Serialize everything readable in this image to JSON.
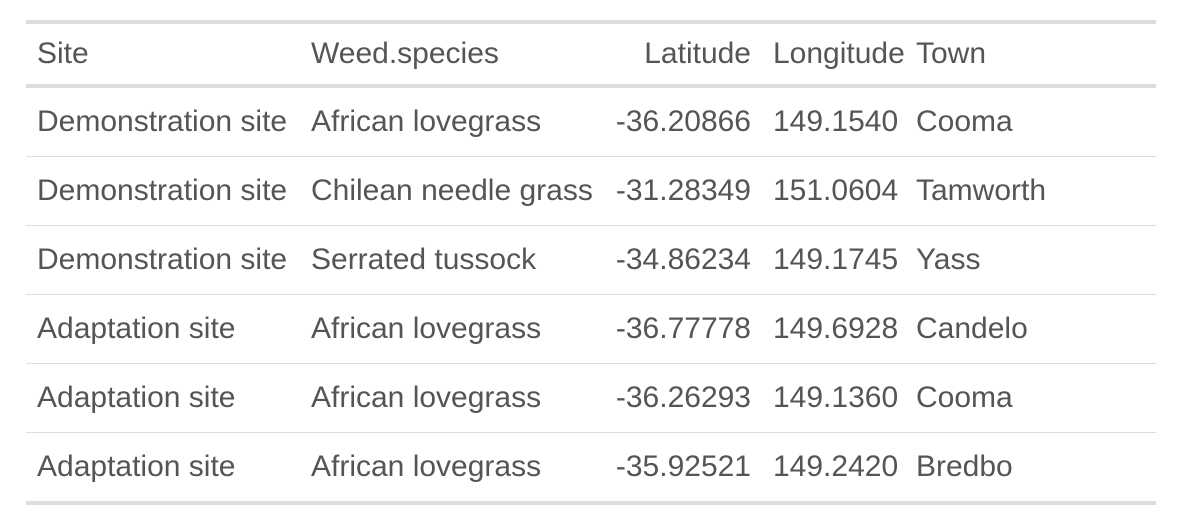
{
  "table": {
    "columns": [
      {
        "label": "Site",
        "align": "left"
      },
      {
        "label": "Weed.species",
        "align": "left"
      },
      {
        "label": "Latitude",
        "align": "right"
      },
      {
        "label": "Longitude",
        "align": "left"
      },
      {
        "label": "Town",
        "align": "left"
      }
    ],
    "rows": [
      [
        "Demonstration site",
        "African lovegrass",
        "-36.20866",
        "149.1540",
        "Cooma"
      ],
      [
        "Demonstration site",
        "Chilean needle grass",
        "-31.28349",
        "151.0604",
        "Tamworth"
      ],
      [
        "Demonstration site",
        "Serrated tussock",
        "-34.86234",
        "149.1745",
        "Yass"
      ],
      [
        "Adaptation site",
        "African lovegrass",
        "-36.77778",
        "149.6928",
        "Candelo"
      ],
      [
        "Adaptation site",
        "African lovegrass",
        "-36.26293",
        "149.1360",
        "Cooma"
      ],
      [
        "Adaptation site",
        "African lovegrass",
        "-35.92521",
        "149.2420",
        "Bredbo"
      ]
    ]
  },
  "colors": {
    "text": "#555555",
    "rule": "#dddddd"
  }
}
